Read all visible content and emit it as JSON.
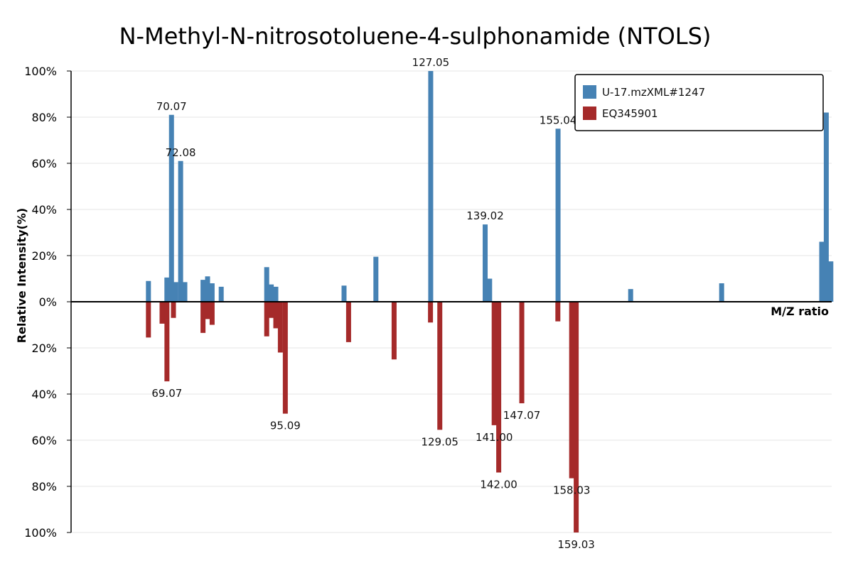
{
  "chart_data": {
    "type": "bar",
    "title": "N-Methyl-N-nitrosotoluene-4-sulphonamide  (NTOLS)",
    "xlabel": "M/Z ratio",
    "ylabel": "Relative Intensity(%)",
    "ylim": [
      -100,
      100
    ],
    "y_ticks": [
      {
        "value": 100,
        "label": "100%"
      },
      {
        "value": 80,
        "label": "80%"
      },
      {
        "value": 60,
        "label": "60%"
      },
      {
        "value": 40,
        "label": "40%"
      },
      {
        "value": 20,
        "label": "20%"
      },
      {
        "value": 0,
        "label": "0%"
      },
      {
        "value": -20,
        "label": "20%"
      },
      {
        "value": -40,
        "label": "40%"
      },
      {
        "value": -60,
        "label": "60%"
      },
      {
        "value": -80,
        "label": "80%"
      },
      {
        "value": -100,
        "label": "100%"
      }
    ],
    "grid": true,
    "legend_position": "top-right",
    "series": [
      {
        "name": "U-17.mzXML#1247",
        "color": "#4682b4",
        "direction": "up",
        "peaks": [
          {
            "mz": 65.0,
            "value": 9
          },
          {
            "mz": 69.06,
            "value": 10.5
          },
          {
            "mz": 70.07,
            "value": 81,
            "label": "70.07"
          },
          {
            "mz": 71.0,
            "value": 8.5
          },
          {
            "mz": 72.08,
            "value": 61,
            "label": "72.08"
          },
          {
            "mz": 73.0,
            "value": 8.5
          },
          {
            "mz": 77.0,
            "value": 9.5
          },
          {
            "mz": 78.0,
            "value": 11
          },
          {
            "mz": 79.0,
            "value": 8
          },
          {
            "mz": 81.0,
            "value": 6.5
          },
          {
            "mz": 91.0,
            "value": 15
          },
          {
            "mz": 92.0,
            "value": 7.5
          },
          {
            "mz": 93.0,
            "value": 6.5
          },
          {
            "mz": 108.0,
            "value": 7
          },
          {
            "mz": 115.0,
            "value": 19.5
          },
          {
            "mz": 127.05,
            "value": 100,
            "label": "127.05"
          },
          {
            "mz": 139.02,
            "value": 33.5,
            "label": "139.02"
          },
          {
            "mz": 140.0,
            "value": 10
          },
          {
            "mz": 155.04,
            "value": 75,
            "label": "155.04"
          },
          {
            "mz": 171.0,
            "value": 5.5
          },
          {
            "mz": 191.0,
            "value": 8
          },
          {
            "mz": 213.0,
            "value": 26
          },
          {
            "mz": 214.0,
            "value": 82
          },
          {
            "mz": 215.0,
            "value": 17.5
          }
        ]
      },
      {
        "name": "EQ345901",
        "color": "#a52a2a",
        "direction": "down",
        "peaks": [
          {
            "mz": 65.0,
            "value": 15.5
          },
          {
            "mz": 68.0,
            "value": 9.5
          },
          {
            "mz": 69.07,
            "value": 34.5,
            "label": "69.07"
          },
          {
            "mz": 70.5,
            "value": 7
          },
          {
            "mz": 77.0,
            "value": 13.5
          },
          {
            "mz": 78.0,
            "value": 7.5
          },
          {
            "mz": 79.0,
            "value": 10
          },
          {
            "mz": 91.0,
            "value": 15
          },
          {
            "mz": 95.09,
            "value": 48.5,
            "label": "95.09"
          },
          {
            "mz": 92.0,
            "value": 7
          },
          {
            "mz": 93.0,
            "value": 11.5
          },
          {
            "mz": 94.0,
            "value": 22
          },
          {
            "mz": 109.0,
            "value": 17.5
          },
          {
            "mz": 119.0,
            "value": 25
          },
          {
            "mz": 127.0,
            "value": 9
          },
          {
            "mz": 129.05,
            "value": 55.5,
            "label": "129.05"
          },
          {
            "mz": 141.0,
            "value": 53.5,
            "label": "141.00"
          },
          {
            "mz": 142.0,
            "value": 74,
            "label": "142.00"
          },
          {
            "mz": 147.07,
            "value": 44,
            "label": "147.07"
          },
          {
            "mz": 155.0,
            "value": 8.5
          },
          {
            "mz": 158.03,
            "value": 76.5,
            "label": "158.03"
          },
          {
            "mz": 159.03,
            "value": 100,
            "label": "159.03"
          }
        ]
      }
    ]
  }
}
